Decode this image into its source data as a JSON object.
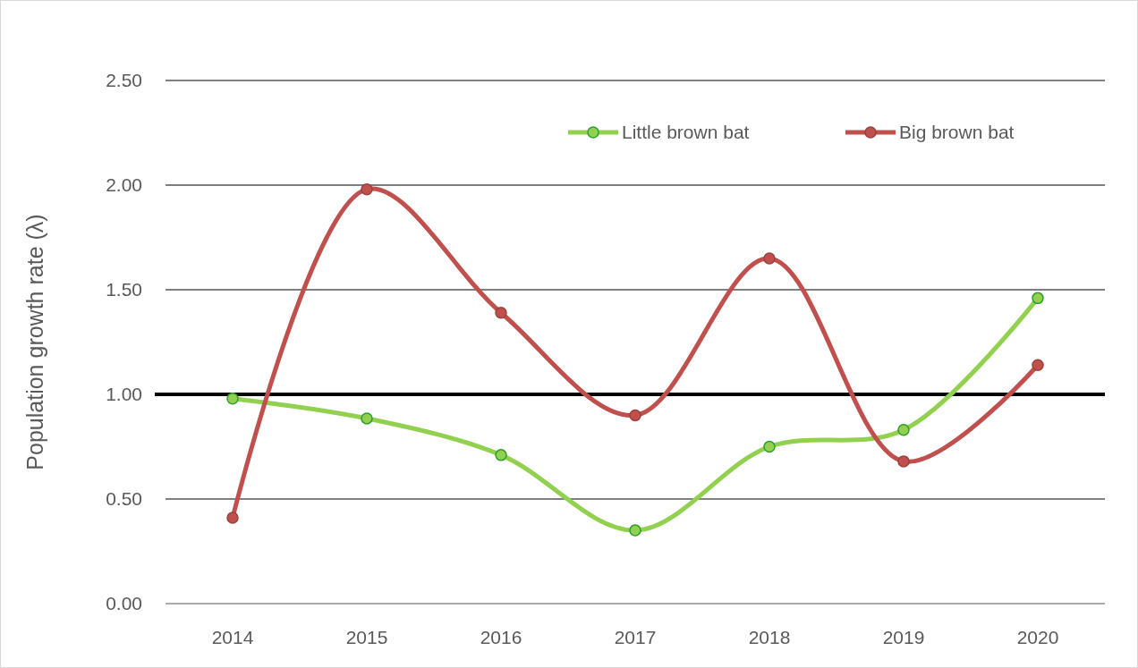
{
  "chart_data": {
    "type": "line",
    "ylabel": "Population growth rate (λ)",
    "categories": [
      "2014",
      "2015",
      "2016",
      "2017",
      "2018",
      "2019",
      "2020"
    ],
    "series": [
      {
        "name": "Little brown bat",
        "color": "#92d050",
        "values": [
          0.98,
          0.885,
          0.71,
          0.35,
          0.75,
          0.83,
          1.46
        ]
      },
      {
        "name": "Big brown bat",
        "color": "#c0504d",
        "values": [
          0.41,
          1.98,
          1.39,
          0.9,
          1.65,
          0.68,
          1.14
        ]
      }
    ],
    "ylim": [
      0,
      2.5
    ],
    "yticks": [
      {
        "value": 0,
        "label": "0.00"
      },
      {
        "value": 0.5,
        "label": "0.50"
      },
      {
        "value": 1,
        "label": "1.00"
      },
      {
        "value": 1.5,
        "label": "1.50"
      },
      {
        "value": 2,
        "label": "2.00"
      },
      {
        "value": 2.5,
        "label": "2.50"
      }
    ],
    "grid": "y",
    "legend": "top right",
    "marker": "circle",
    "line_style": "solid",
    "ref_lines": [
      {
        "axis": "y",
        "value": 1,
        "color": "#000000"
      }
    ]
  }
}
